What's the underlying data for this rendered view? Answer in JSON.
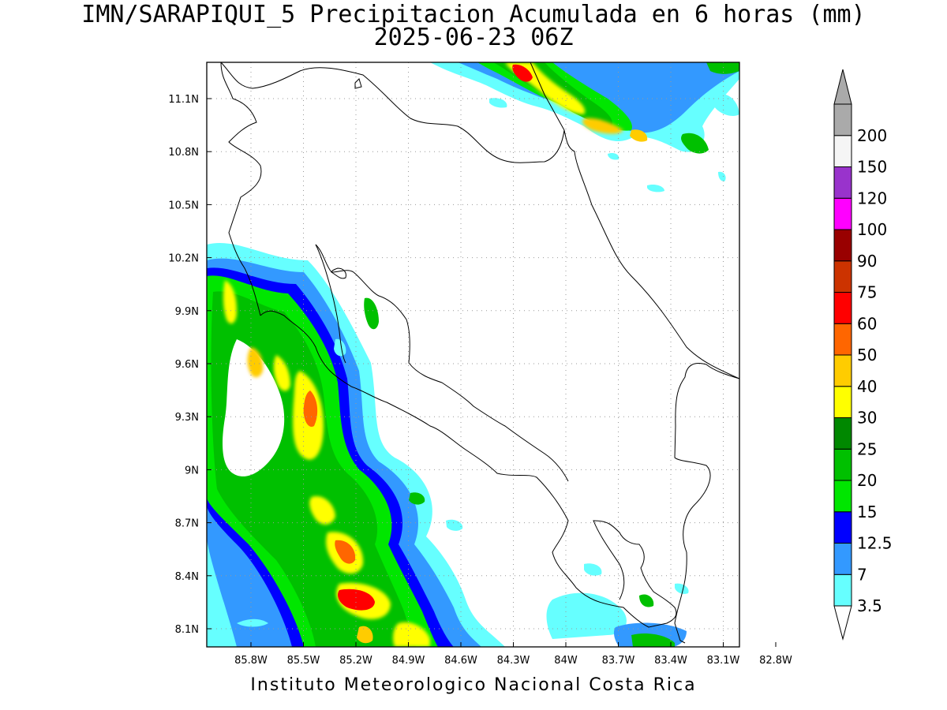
{
  "title_line1": "IMN/SARAPIQUI_5 Precipitacion Acumulada en 6 horas (mm)",
  "title_line2": "2025-06-23 06Z",
  "credit": "Instituto Meteorologico Nacional Costa Rica",
  "map": {
    "lon_range": [
      -86.05,
      -83.05
    ],
    "lat_range": [
      8.0,
      11.3
    ],
    "lon_ticks": [
      "85.8W",
      "85.5W",
      "85.2W",
      "84.9W",
      "84.6W",
      "84.3W",
      "84W",
      "83.7W",
      "83.4W",
      "83.1W",
      "82.8W"
    ],
    "lat_ticks": [
      "8.1N",
      "8.4N",
      "8.7N",
      "9N",
      "9.3N",
      "9.6N",
      "9.9N",
      "10.2N",
      "10.5N",
      "10.8N",
      "11.1N"
    ],
    "grid": true
  },
  "legend": {
    "levels": [
      "3.5",
      "7",
      "12.5",
      "15",
      "20",
      "25",
      "30",
      "40",
      "50",
      "60",
      "75",
      "90",
      "100",
      "120",
      "150",
      "200"
    ],
    "colors": [
      "#66ffff",
      "#3399ff",
      "#0000ff",
      "#00e600",
      "#00c000",
      "#008800",
      "#ffff00",
      "#ffcc00",
      "#ff6600",
      "#ff0000",
      "#cc3300",
      "#990000",
      "#ff00ff",
      "#9933cc",
      "#f5f5f5",
      "#aaaaaa"
    ],
    "below_color": "#ffffff",
    "above_color": "#aaaaaa"
  }
}
